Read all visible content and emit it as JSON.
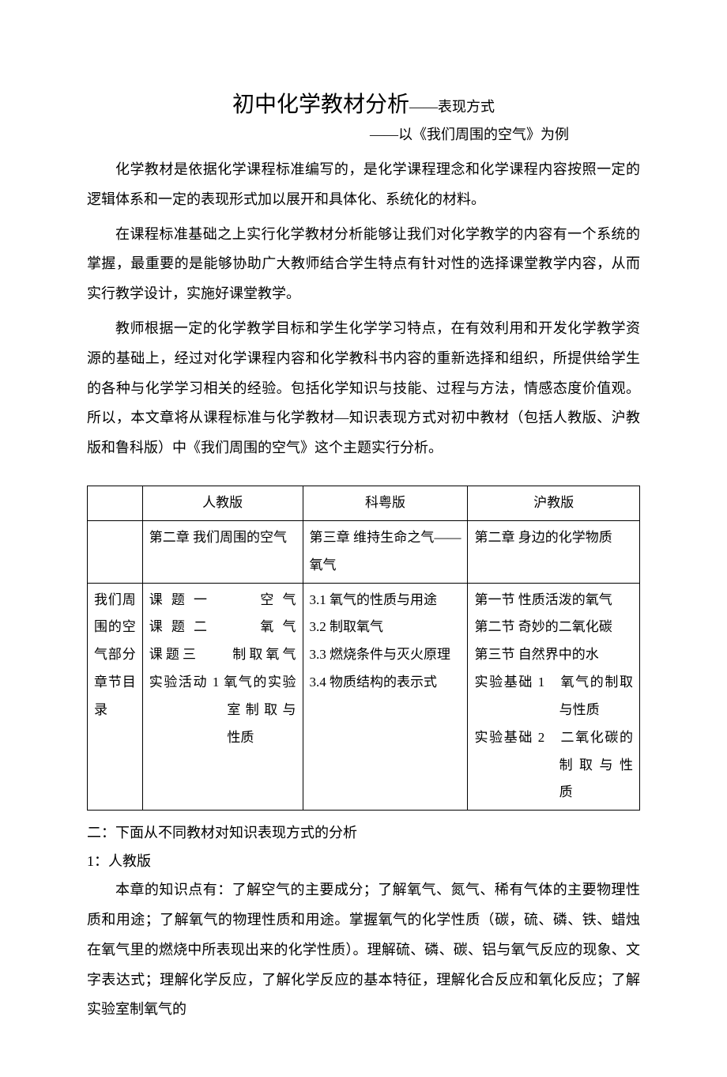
{
  "title_main": "初中化学教材分析",
  "title_dash": "——",
  "title_sub": "表现方式",
  "subtitle": "——以《我们周围的空气》为例",
  "paragraphs": {
    "p1": "化学教材是依据化学课程标准编写的，是化学课程理念和化学课程内容按照一定的逻辑体系和一定的表现形式加以展开和具体化、系统化的材料。",
    "p2": "在课程标准基础之上实行化学教材分析能够让我们对化学教学的内容有一个系统的掌握，最重要的是能够协助广大教师结合学生特点有针对性的选择课堂教学内容，从而实行教学设计，实施好课堂教学。",
    "p3": "教师根据一定的化学教学目标和学生化学学习特点，在有效利用和开发化学教学资源的基础上，经过对化学课程内容和化学教科书内容的重新选择和组织，所提供给学生的各种与化学学习相关的经验。包括化学知识与技能、过程与方法，情感态度价值观。所以，本文章将从课程标准与化学教材—知识表现方式对初中教材（包括人教版、沪教版和鲁科版）中《我们周围的空气》这个主题实行分析。"
  },
  "table": {
    "headers": {
      "h0": "",
      "h1": "人教版",
      "h2": "科粤版",
      "h3": "沪教版"
    },
    "row1": {
      "c0": "",
      "c1": "第二章 我们周围的空气",
      "c2": "第三章 维持生命之气——氧气",
      "c3": "第二章 身边的化学物质"
    },
    "row2": {
      "c0": "我们周围的空气部分章节目录",
      "c1_l1": "课题一　　空气",
      "c1_l2": "课题二　　氧气",
      "c1_l3": "课题三　　制取氧气",
      "c1_l4": "实验活动 1  氧气的实验",
      "c1_l5": "室制取与",
      "c1_l6": "性质",
      "c2": "3.1  氧气的性质与用途\n3.2  制取氧气\n3.3  燃烧条件与灭火原理\n3.4 物质结构的表示式",
      "c3_l1": "第一节  性质活泼的氧气",
      "c3_l2": "第二节  奇妙的二氧化碳",
      "c3_l3": "第三节  自然界中的水",
      "c3_l4": "实验基础 1　氧气的制取",
      "c3_l5": "与性质",
      "c3_l6": "实验基础 2　二氧化碳的",
      "c3_l7": "制取与性",
      "c3_l8": "质"
    }
  },
  "section2": "二：下面从不同教材对知识表现方式的分析",
  "section2_1": "1：人教版",
  "p4": "本章的知识点有：了解空气的主要成分；了解氧气、氮气、稀有气体的主要物理性质和用途；了解氧气的物理性质和用途。掌握氧气的化学性质（碳，硫、磷、铁、蜡烛在氧气里的燃烧中所表现出来的化学性质）。理解硫、磷、碳、铝与氧气反应的现象、文字表达式；理解化学反应，了解化学反应的基本特征，理解化合反应和氧化反应；了解实验室制氧气的",
  "style": {
    "page_bg": "#ffffff",
    "text_color": "#000000",
    "title_fontsize": 28,
    "body_fontsize": 18,
    "table_fontsize": 17,
    "line_height": 2.1,
    "border_color": "#000000"
  }
}
